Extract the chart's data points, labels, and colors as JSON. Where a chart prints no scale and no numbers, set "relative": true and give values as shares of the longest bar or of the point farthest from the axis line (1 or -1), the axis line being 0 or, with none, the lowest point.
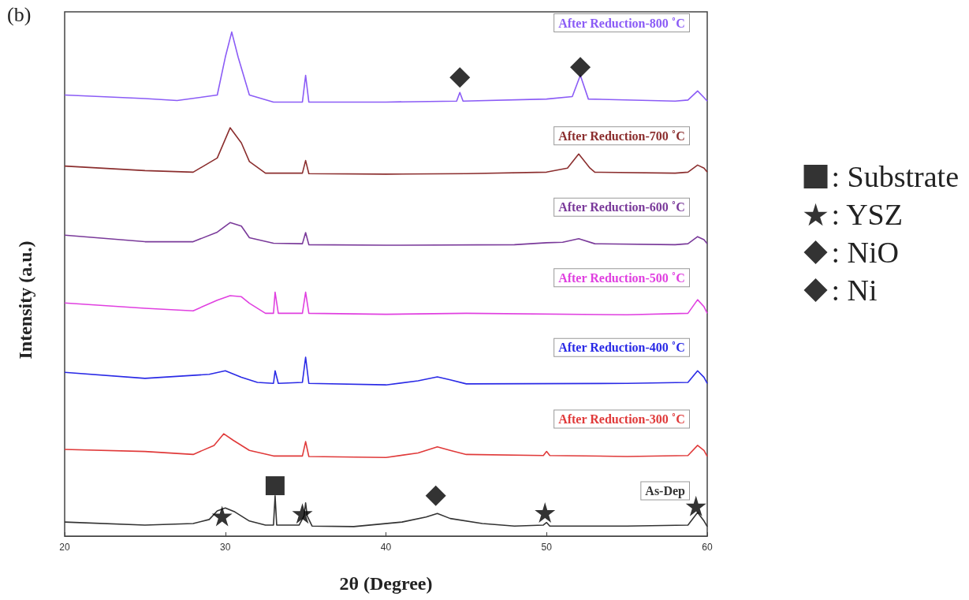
{
  "chart_data": {
    "type": "line",
    "title": "(b)",
    "xlabel": "2θ (Degree)",
    "ylabel": "Intensity (a.u.)",
    "relative": true,
    "xlim": [
      20,
      60
    ],
    "xticks": [
      20,
      30,
      40,
      50,
      60
    ],
    "grid": false,
    "legend": "right",
    "marker": "none",
    "line_style": "solid",
    "series": [
      {
        "name": "As-Dep",
        "color": "#333333",
        "x": [
          20,
          25,
          28,
          29,
          29.5,
          30,
          30.6,
          31.5,
          32.5,
          33,
          33.1,
          33.2,
          34.6,
          34.9,
          35,
          35.1,
          35.4,
          38,
          41,
          42.5,
          43.2,
          44,
          46,
          48,
          49.8,
          50,
          50.2,
          55,
          58.8,
          59.4,
          59.8,
          60
        ],
        "values": [
          0.028,
          0.022,
          0.025,
          0.033,
          0.05,
          0.056,
          0.048,
          0.03,
          0.022,
          0.022,
          0.08,
          0.022,
          0.022,
          0.04,
          0.066,
          0.04,
          0.02,
          0.019,
          0.028,
          0.038,
          0.045,
          0.035,
          0.025,
          0.02,
          0.022,
          0.027,
          0.02,
          0.02,
          0.022,
          0.047,
          0.03,
          0.019
        ]
      },
      {
        "name": "After Reduction-300 ˚C",
        "color": "#e03a3a",
        "x": [
          20,
          25,
          28,
          29.3,
          29.9,
          30.5,
          31.5,
          33,
          34.8,
          35,
          35.2,
          40,
          42,
          43.2,
          44,
          45,
          49.8,
          50,
          50.2,
          55,
          58.8,
          59.4,
          59.8,
          60
        ],
        "values": [
          0.172,
          0.168,
          0.162,
          0.18,
          0.203,
          0.19,
          0.17,
          0.159,
          0.159,
          0.1875,
          0.158,
          0.156,
          0.165,
          0.177,
          0.17,
          0.162,
          0.16,
          0.168,
          0.16,
          0.158,
          0.16,
          0.18,
          0.17,
          0.158
        ]
      },
      {
        "name": "After Reduction-400 ˚C",
        "color": "#2a2ae6",
        "x": [
          20,
          25,
          29,
          30,
          31,
          32,
          33,
          33.1,
          33.3,
          34.8,
          35,
          35.2,
          40,
          42,
          43.2,
          44,
          45,
          55,
          58.8,
          59.4,
          59.8,
          60
        ],
        "values": [
          0.325,
          0.313,
          0.321,
          0.328,
          0.315,
          0.305,
          0.303,
          0.328,
          0.303,
          0.305,
          0.355,
          0.303,
          0.3,
          0.308,
          0.316,
          0.31,
          0.302,
          0.303,
          0.305,
          0.328,
          0.315,
          0.303
        ]
      },
      {
        "name": "After Reduction-500 ˚C",
        "color": "#e040e0",
        "x": [
          20,
          25,
          28,
          29.5,
          30.3,
          31,
          31.5,
          32.5,
          33,
          33.1,
          33.3,
          34.8,
          35,
          35.2,
          40,
          45,
          55,
          58.8,
          59.4,
          59.8,
          60
        ],
        "values": [
          0.4625,
          0.452,
          0.447,
          0.468,
          0.477,
          0.475,
          0.462,
          0.442,
          0.442,
          0.484,
          0.442,
          0.442,
          0.484,
          0.442,
          0.44,
          0.442,
          0.439,
          0.442,
          0.469,
          0.455,
          0.442
        ]
      },
      {
        "name": "After Reduction-600 ˚C",
        "color": "#7a3a9a",
        "x": [
          20,
          25,
          28,
          29.5,
          30.3,
          31,
          31.5,
          33,
          34.8,
          35,
          35.2,
          40,
          48,
          50,
          51,
          52,
          53,
          58,
          58.8,
          59.4,
          59.8,
          60
        ],
        "values": [
          0.597,
          0.584,
          0.584,
          0.603,
          0.622,
          0.615,
          0.592,
          0.581,
          0.58,
          0.602,
          0.578,
          0.577,
          0.578,
          0.582,
          0.583,
          0.59,
          0.58,
          0.578,
          0.58,
          0.594,
          0.588,
          0.58
        ]
      },
      {
        "name": "After Reduction-700 ˚C",
        "color": "#8b2e2e",
        "x": [
          20,
          25,
          28,
          29.5,
          30.3,
          31,
          31.5,
          32.5,
          34.8,
          35,
          35.2,
          40,
          45,
          50,
          51.3,
          52,
          52.7,
          53,
          58,
          58.8,
          59.4,
          59.8,
          60
        ],
        "values": [
          0.734,
          0.725,
          0.722,
          0.75,
          0.81,
          0.78,
          0.743,
          0.72,
          0.72,
          0.745,
          0.719,
          0.718,
          0.719,
          0.722,
          0.73,
          0.758,
          0.73,
          0.722,
          0.72,
          0.722,
          0.736,
          0.73,
          0.722
        ]
      },
      {
        "name": "After Reduction-800 ˚C",
        "color": "#8b5cf6",
        "x": [
          20,
          25,
          27,
          29.5,
          30,
          30.4,
          30.8,
          31.5,
          33,
          34.8,
          35,
          35.2,
          40,
          44.4,
          44.6,
          44.8,
          50,
          51.6,
          52.1,
          52.6,
          58,
          58.8,
          59.4,
          59.8,
          60
        ],
        "values": [
          0.875,
          0.868,
          0.864,
          0.875,
          0.95,
          1.0,
          0.95,
          0.875,
          0.861,
          0.861,
          0.914,
          0.861,
          0.861,
          0.863,
          0.88,
          0.863,
          0.867,
          0.872,
          0.914,
          0.867,
          0.863,
          0.865,
          0.883,
          0.87,
          0.863
        ]
      },
      {
        "name": ": Substrate",
        "type": "scatter",
        "marker": "square",
        "color": "#000000",
        "x": [
          33.1
        ],
        "values": [
          0.1
        ]
      },
      {
        "name": ": YSZ",
        "type": "scatter",
        "marker": "star",
        "color": "#000000",
        "x": [
          29.8,
          34.8,
          49.9,
          59.3
        ],
        "values": [
          0.04,
          0.045,
          0.047,
          0.06
        ]
      },
      {
        "name": ": NiO",
        "type": "scatter",
        "marker": "diamond",
        "color": "#000000",
        "x": [
          43.1
        ],
        "values": [
          0.08
        ]
      },
      {
        "name": ": Ni",
        "type": "scatter",
        "marker": "diamond",
        "color": "#000000",
        "x": [
          44.6,
          52.1
        ],
        "values": [
          0.91,
          0.93
        ]
      }
    ]
  }
}
